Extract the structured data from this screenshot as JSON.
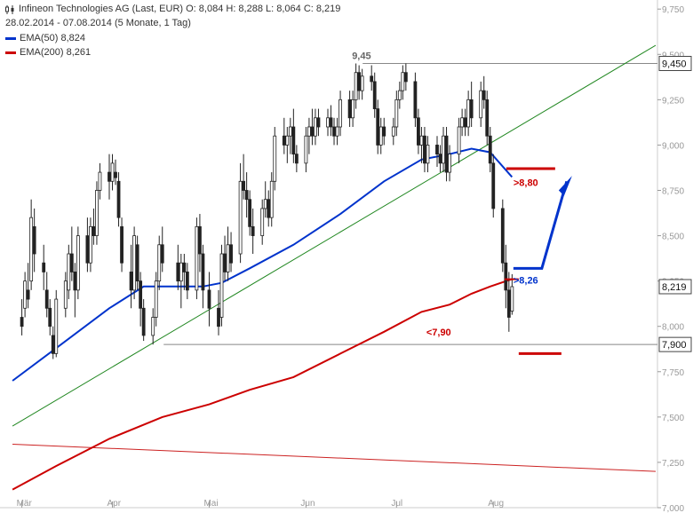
{
  "header": {
    "icon": "candlestick-icon",
    "line1": "Infineon Technologies AG (Last, EUR)  O: 8,084  H: 8,288  L: 8,064  C: 8,219",
    "line2": "28.02.2014 - 07.08.2014 (5 Monate, 1 Tag)",
    "ema50_label": "EMA(50)  8,824",
    "ema200_label": "EMA(200)  8,261"
  },
  "colors": {
    "ema50": "#0033cc",
    "ema200": "#cc0000",
    "trend_up": "#228822",
    "trend_down": "#cc2222",
    "level": "#888888",
    "candle": "#222222"
  },
  "chart_data": {
    "type": "candlestick",
    "ylim": [
      7.0,
      9.8
    ],
    "y_ticks": [
      {
        "v": 9.75,
        "label": "9,750"
      },
      {
        "v": 9.5,
        "label": "9,500"
      },
      {
        "v": 9.25,
        "label": "9,250"
      },
      {
        "v": 9.0,
        "label": "9,000"
      },
      {
        "v": 8.75,
        "label": "8,750"
      },
      {
        "v": 8.5,
        "label": "8,500"
      },
      {
        "v": 8.25,
        "label": "8,250"
      },
      {
        "v": 8.0,
        "label": "8,000"
      },
      {
        "v": 7.75,
        "label": "7,750"
      },
      {
        "v": 7.5,
        "label": "7,500"
      },
      {
        "v": 7.25,
        "label": "7,250"
      },
      {
        "v": 7.0,
        "label": "7,000"
      }
    ],
    "x_ticks": [
      {
        "date": "2014-03-03",
        "label": "Mär"
      },
      {
        "date": "2014-04-01",
        "label": "Apr"
      },
      {
        "date": "2014-05-02",
        "label": "Mai"
      },
      {
        "date": "2014-06-02",
        "label": "Jun"
      },
      {
        "date": "2014-07-01",
        "label": "Jul"
      },
      {
        "date": "2014-08-01",
        "label": "Aug"
      }
    ],
    "candles": [
      [
        "2014-03-03",
        8.05,
        8.15,
        7.95,
        8.0
      ],
      [
        "2014-03-04",
        8.1,
        8.3,
        8.05,
        8.25
      ],
      [
        "2014-03-05",
        8.2,
        8.35,
        8.1,
        8.15
      ],
      [
        "2014-03-06",
        8.25,
        8.7,
        8.2,
        8.6
      ],
      [
        "2014-03-07",
        8.55,
        8.65,
        8.3,
        8.4
      ],
      [
        "2014-03-10",
        8.35,
        8.45,
        8.2,
        8.3
      ],
      [
        "2014-03-11",
        8.2,
        8.3,
        8.05,
        8.1
      ],
      [
        "2014-03-12",
        8.1,
        8.15,
        7.95,
        8.0
      ],
      [
        "2014-03-13",
        7.95,
        8.0,
        7.82,
        7.85
      ],
      [
        "2014-03-14",
        7.85,
        8.2,
        7.83,
        8.15
      ],
      [
        "2014-03-17",
        8.1,
        8.3,
        8.05,
        8.25
      ],
      [
        "2014-03-18",
        8.2,
        8.45,
        8.15,
        8.4
      ],
      [
        "2014-03-19",
        8.4,
        8.55,
        8.25,
        8.3
      ],
      [
        "2014-03-20",
        8.3,
        8.35,
        8.05,
        8.2
      ],
      [
        "2014-03-21",
        8.2,
        8.55,
        8.15,
        8.5
      ],
      [
        "2014-03-24",
        8.5,
        8.6,
        8.3,
        8.35
      ],
      [
        "2014-03-25",
        8.35,
        8.6,
        8.3,
        8.55
      ],
      [
        "2014-03-26",
        8.55,
        8.65,
        8.45,
        8.5
      ],
      [
        "2014-03-27",
        8.5,
        8.8,
        8.45,
        8.75
      ],
      [
        "2014-03-28",
        8.75,
        8.9,
        8.7,
        8.85
      ],
      [
        "2014-03-31",
        8.85,
        8.95,
        8.7,
        8.8
      ],
      [
        "2014-04-01",
        8.8,
        8.95,
        8.75,
        8.9
      ],
      [
        "2014-04-02",
        8.85,
        8.92,
        8.78,
        8.82
      ],
      [
        "2014-04-03",
        8.8,
        8.85,
        8.55,
        8.6
      ],
      [
        "2014-04-04",
        8.55,
        8.6,
        8.3,
        8.35
      ],
      [
        "2014-04-07",
        8.3,
        8.45,
        8.1,
        8.2
      ],
      [
        "2014-04-08",
        8.2,
        8.55,
        8.15,
        8.5
      ],
      [
        "2014-04-09",
        8.45,
        8.5,
        8.2,
        8.25
      ],
      [
        "2014-04-10",
        8.25,
        8.3,
        8.0,
        8.1
      ],
      [
        "2014-04-11",
        8.1,
        8.15,
        7.92,
        7.95
      ],
      [
        "2014-04-14",
        7.95,
        8.1,
        7.9,
        8.05
      ],
      [
        "2014-04-15",
        8.05,
        8.3,
        8.0,
        8.25
      ],
      [
        "2014-04-16",
        8.25,
        8.5,
        8.2,
        8.45
      ],
      [
        "2014-04-17",
        8.45,
        8.55,
        8.3,
        8.35
      ],
      [
        "2014-04-22",
        8.35,
        8.45,
        8.2,
        8.25
      ],
      [
        "2014-04-23",
        8.25,
        8.4,
        8.1,
        8.35
      ],
      [
        "2014-04-24",
        8.35,
        8.4,
        8.2,
        8.3
      ],
      [
        "2014-04-25",
        8.3,
        8.35,
        8.15,
        8.2
      ],
      [
        "2014-04-28",
        8.2,
        8.6,
        8.15,
        8.55
      ],
      [
        "2014-04-29",
        8.55,
        8.62,
        8.3,
        8.4
      ],
      [
        "2014-04-30",
        8.4,
        8.45,
        8.1,
        8.2
      ],
      [
        "2014-05-02",
        8.2,
        8.3,
        8.0,
        8.1
      ],
      [
        "2014-05-05",
        8.1,
        8.2,
        7.95,
        8.0
      ],
      [
        "2014-05-06",
        8.05,
        8.45,
        8.0,
        8.4
      ],
      [
        "2014-05-07",
        8.4,
        8.5,
        8.25,
        8.3
      ],
      [
        "2014-05-08",
        8.3,
        8.55,
        8.25,
        8.45
      ],
      [
        "2014-05-09",
        8.45,
        8.52,
        8.3,
        8.35
      ],
      [
        "2014-05-12",
        8.4,
        8.9,
        8.35,
        8.8
      ],
      [
        "2014-05-13",
        8.8,
        8.95,
        8.7,
        8.75
      ],
      [
        "2014-05-14",
        8.75,
        8.85,
        8.6,
        8.7
      ],
      [
        "2014-05-15",
        8.7,
        8.75,
        8.5,
        8.55
      ],
      [
        "2014-05-16",
        8.55,
        8.65,
        8.4,
        8.5
      ],
      [
        "2014-05-19",
        8.5,
        8.7,
        8.45,
        8.65
      ],
      [
        "2014-05-20",
        8.65,
        8.8,
        8.6,
        8.7
      ],
      [
        "2014-05-21",
        8.7,
        8.75,
        8.55,
        8.6
      ],
      [
        "2014-05-22",
        8.6,
        8.85,
        8.55,
        8.8
      ],
      [
        "2014-05-23",
        8.8,
        9.1,
        8.75,
        9.05
      ],
      [
        "2014-05-26",
        9.05,
        9.15,
        8.95,
        9.0
      ],
      [
        "2014-05-27",
        9.0,
        9.1,
        8.9,
        9.05
      ],
      [
        "2014-05-28",
        9.05,
        9.15,
        8.95,
        9.1
      ],
      [
        "2014-05-29",
        9.1,
        9.2,
        8.9,
        8.95
      ],
      [
        "2014-05-30",
        8.95,
        9.0,
        8.85,
        8.9
      ],
      [
        "2014-06-02",
        8.9,
        9.1,
        8.85,
        9.05
      ],
      [
        "2014-06-03",
        9.05,
        9.15,
        8.95,
        9.1
      ],
      [
        "2014-06-04",
        9.1,
        9.2,
        9.0,
        9.05
      ],
      [
        "2014-06-05",
        9.05,
        9.2,
        9.0,
        9.15
      ],
      [
        "2014-06-06",
        9.15,
        9.2,
        9.05,
        9.1
      ],
      [
        "2014-06-09",
        9.1,
        9.2,
        9.05,
        9.15
      ],
      [
        "2014-06-10",
        9.15,
        9.22,
        9.05,
        9.1
      ],
      [
        "2014-06-11",
        9.1,
        9.15,
        9.0,
        9.05
      ],
      [
        "2014-06-12",
        9.05,
        9.15,
        9.0,
        9.1
      ],
      [
        "2014-06-13",
        9.1,
        9.3,
        9.05,
        9.25
      ],
      [
        "2014-06-16",
        9.25,
        9.3,
        9.1,
        9.15
      ],
      [
        "2014-06-17",
        9.15,
        9.3,
        9.1,
        9.25
      ],
      [
        "2014-06-18",
        9.25,
        9.45,
        9.2,
        9.4
      ],
      [
        "2014-06-19",
        9.4,
        9.44,
        9.25,
        9.3
      ],
      [
        "2014-06-20",
        9.3,
        9.42,
        9.25,
        9.38
      ],
      [
        "2014-06-23",
        9.38,
        9.44,
        9.3,
        9.35
      ],
      [
        "2014-06-24",
        9.35,
        9.4,
        9.15,
        9.2
      ],
      [
        "2014-06-25",
        9.2,
        9.25,
        8.95,
        9.0
      ],
      [
        "2014-06-26",
        9.0,
        9.15,
        8.95,
        9.1
      ],
      [
        "2014-06-27",
        9.1,
        9.15,
        9.0,
        9.05
      ],
      [
        "2014-06-30",
        9.05,
        9.15,
        9.0,
        9.1
      ],
      [
        "2014-07-01",
        9.1,
        9.3,
        9.05,
        9.25
      ],
      [
        "2014-07-02",
        9.25,
        9.35,
        9.2,
        9.3
      ],
      [
        "2014-07-03",
        9.3,
        9.44,
        9.25,
        9.4
      ],
      [
        "2014-07-04",
        9.4,
        9.45,
        9.3,
        9.35
      ],
      [
        "2014-07-07",
        9.35,
        9.4,
        9.1,
        9.15
      ],
      [
        "2014-07-08",
        9.15,
        9.2,
        8.95,
        9.0
      ],
      [
        "2014-07-09",
        9.0,
        9.1,
        8.9,
        9.05
      ],
      [
        "2014-07-10",
        9.05,
        9.1,
        8.85,
        8.9
      ],
      [
        "2014-07-11",
        8.9,
        9.05,
        8.85,
        9.0
      ],
      [
        "2014-07-14",
        9.0,
        9.05,
        8.88,
        8.95
      ],
      [
        "2014-07-15",
        8.95,
        9.0,
        8.85,
        8.9
      ],
      [
        "2014-07-16",
        8.9,
        9.1,
        8.85,
        9.05
      ],
      [
        "2014-07-17",
        9.05,
        9.1,
        8.8,
        8.85
      ],
      [
        "2014-07-18",
        8.85,
        9.0,
        8.8,
        8.95
      ],
      [
        "2014-07-21",
        8.95,
        9.15,
        8.9,
        9.1
      ],
      [
        "2014-07-22",
        9.1,
        9.2,
        9.05,
        9.15
      ],
      [
        "2014-07-23",
        9.15,
        9.2,
        9.05,
        9.1
      ],
      [
        "2014-07-24",
        9.1,
        9.3,
        9.05,
        9.25
      ],
      [
        "2014-07-25",
        9.25,
        9.35,
        9.1,
        9.15
      ],
      [
        "2014-07-28",
        9.15,
        9.35,
        9.1,
        9.3
      ],
      [
        "2014-07-29",
        9.3,
        9.38,
        9.2,
        9.25
      ],
      [
        "2014-07-30",
        9.25,
        9.3,
        9.0,
        9.05
      ],
      [
        "2014-07-31",
        9.05,
        9.1,
        8.85,
        8.9
      ],
      [
        "2014-08-01",
        8.9,
        8.95,
        8.6,
        8.65
      ],
      [
        "2014-08-04",
        8.65,
        8.7,
        8.3,
        8.35
      ],
      [
        "2014-08-05",
        8.35,
        8.45,
        8.1,
        8.2
      ],
      [
        "2014-08-06",
        8.2,
        8.3,
        7.97,
        8.05
      ],
      [
        "2014-08-07",
        8.084,
        8.288,
        8.064,
        8.219
      ]
    ],
    "ema50": [
      [
        "2014-02-28",
        7.7
      ],
      [
        "2014-03-14",
        7.88
      ],
      [
        "2014-03-31",
        8.1
      ],
      [
        "2014-04-11",
        8.22
      ],
      [
        "2014-04-30",
        8.22
      ],
      [
        "2014-05-06",
        8.24
      ],
      [
        "2014-05-15",
        8.32
      ],
      [
        "2014-05-29",
        8.45
      ],
      [
        "2014-06-13",
        8.62
      ],
      [
        "2014-06-27",
        8.8
      ],
      [
        "2014-07-09",
        8.92
      ],
      [
        "2014-07-18",
        8.95
      ],
      [
        "2014-07-25",
        8.98
      ],
      [
        "2014-07-31",
        8.96
      ],
      [
        "2014-08-07",
        8.824
      ]
    ],
    "ema200": [
      [
        "2014-02-28",
        7.1
      ],
      [
        "2014-03-14",
        7.23
      ],
      [
        "2014-03-31",
        7.38
      ],
      [
        "2014-04-17",
        7.5
      ],
      [
        "2014-05-02",
        7.57
      ],
      [
        "2014-05-15",
        7.65
      ],
      [
        "2014-05-29",
        7.72
      ],
      [
        "2014-06-13",
        7.85
      ],
      [
        "2014-06-27",
        7.97
      ],
      [
        "2014-07-09",
        8.08
      ],
      [
        "2014-07-18",
        8.12
      ],
      [
        "2014-07-25",
        8.18
      ],
      [
        "2014-07-31",
        8.22
      ],
      [
        "2014-08-07",
        8.261
      ]
    ],
    "trendline_up": {
      "from": [
        "2014-02-28",
        7.45
      ],
      "to": [
        "2014-09-22",
        9.55
      ],
      "color": "#228822"
    },
    "trendline_down": {
      "from": [
        "2014-02-28",
        7.35
      ],
      "to": [
        "2014-09-22",
        7.2
      ],
      "color": "#cc2222"
    },
    "level_945": {
      "value": 9.45,
      "from_date": "2014-06-23",
      "label": "9,45",
      "box_label": "9,450"
    },
    "level_790": {
      "value": 7.9,
      "from_date": "2014-04-14",
      "label": "<7,90",
      "box_label": "7,900"
    },
    "last_price_box": {
      "value": 8.219,
      "label": "8,219"
    },
    "annotations": [
      {
        "text": ">8,80",
        "date": "2014-08-08",
        "value": 8.8,
        "color": "#cc0000"
      },
      {
        "text": ">8,26",
        "date": "2014-08-08",
        "value": 8.26,
        "color": "#0033cc"
      }
    ]
  }
}
